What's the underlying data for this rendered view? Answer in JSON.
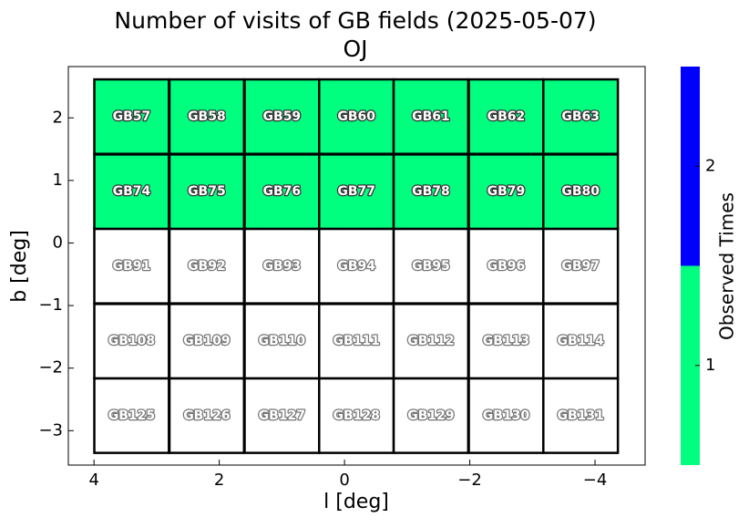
{
  "chart_data": {
    "type": "field-grid",
    "title": "Number of visits of GB fields (2025-05-07)",
    "subtitle": "OJ",
    "x_label": "l [deg]",
    "y_label": "b [deg]",
    "xlim": [
      4.41,
      -4.8
    ],
    "ylim": [
      -3.55,
      2.82
    ],
    "xticks": [
      4,
      2,
      0,
      {
        "value": -2,
        "label": "−2"
      },
      {
        "value": -4,
        "label": "−4"
      }
    ],
    "yticks": [
      2,
      1,
      0,
      {
        "value": -1,
        "label": "−1"
      },
      {
        "value": -2,
        "label": "−2"
      },
      {
        "value": -3,
        "label": "−3"
      }
    ],
    "categories": [
      "GB57",
      "GB58",
      "GB59",
      "GB60",
      "GB61",
      "GB62",
      "GB63",
      "GB74",
      "GB75",
      "GB76",
      "GB77",
      "GB78",
      "GB79",
      "GB80",
      "GB91",
      "GB92",
      "GB93",
      "GB94",
      "GB95",
      "GB96",
      "GB97",
      "GB108",
      "GB109",
      "GB110",
      "GB111",
      "GB112",
      "GB113",
      "GB114",
      "GB125",
      "GB126",
      "GB127",
      "GB128",
      "GB129",
      "GB130",
      "GB131"
    ],
    "x": [
      3.4,
      2.2,
      1.0,
      -0.19,
      -1.38,
      -2.58,
      -3.77,
      3.4,
      2.2,
      1.0,
      -0.19,
      -1.38,
      -2.58,
      -3.77,
      3.4,
      2.2,
      1.0,
      -0.19,
      -1.38,
      -2.58,
      -3.77,
      3.4,
      2.2,
      1.0,
      -0.19,
      -1.38,
      -2.58,
      -3.77,
      3.4,
      2.2,
      1.0,
      -0.19,
      -1.38,
      -2.58,
      -3.77
    ],
    "y": [
      2.02,
      2.02,
      2.02,
      2.02,
      2.02,
      2.02,
      2.02,
      0.82,
      0.82,
      0.82,
      0.82,
      0.82,
      0.82,
      0.82,
      -0.37,
      -0.37,
      -0.37,
      -0.37,
      -0.37,
      -0.37,
      -0.37,
      -1.57,
      -1.57,
      -1.57,
      -1.57,
      -1.57,
      -1.57,
      -1.57,
      -2.76,
      -2.76,
      -2.76,
      -2.76,
      -2.76,
      -2.76,
      -2.76
    ],
    "values": [
      1,
      1,
      1,
      1,
      1,
      1,
      1,
      1,
      1,
      1,
      1,
      1,
      1,
      1,
      0,
      0,
      0,
      0,
      0,
      0,
      0,
      0,
      0,
      0,
      0,
      0,
      0,
      0,
      0,
      0,
      0,
      0,
      0,
      0,
      0
    ],
    "empty_color": "#ffffff",
    "colorbar": {
      "label": "Observed Times",
      "lim": [
        0.5,
        2.5
      ],
      "ticks": [
        1,
        2
      ],
      "colors": [
        "#00ff7f",
        "#0000ff"
      ]
    }
  }
}
